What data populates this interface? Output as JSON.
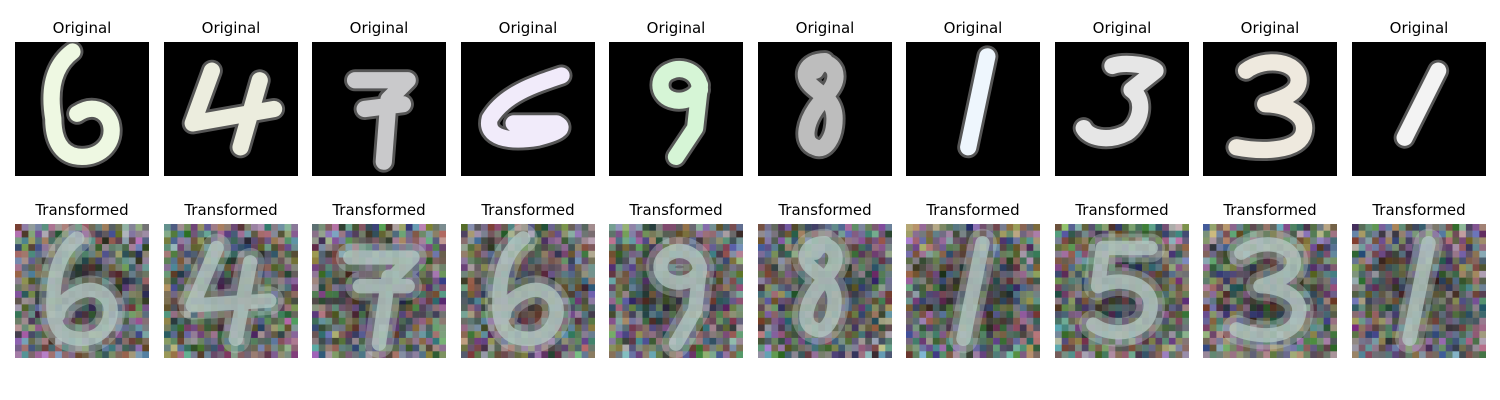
{
  "rows": {
    "original": {
      "title": "Original",
      "background": "#000000",
      "panels": [
        {
          "digit": "6",
          "color": "#eef8e2"
        },
        {
          "digit": "4",
          "color": "#ecedde"
        },
        {
          "digit": "7",
          "color": "#c9c9cb"
        },
        {
          "digit": "6",
          "color": "#f1ebfa"
        },
        {
          "digit": "9",
          "color": "#d6f5d6"
        },
        {
          "digit": "8",
          "color": "#bdbdbd"
        },
        {
          "digit": "1",
          "color": "#eef6fd"
        },
        {
          "digit": "3",
          "color": "#e6e6e6"
        },
        {
          "digit": "3",
          "color": "#eee9de"
        },
        {
          "digit": "1",
          "color": "#f3f3f3"
        }
      ]
    },
    "transformed": {
      "title": "Transformed",
      "panels": [
        {
          "digit": "6"
        },
        {
          "digit": "4"
        },
        {
          "digit": "7"
        },
        {
          "digit": "6"
        },
        {
          "digit": "9"
        },
        {
          "digit": "8"
        },
        {
          "digit": "1"
        },
        {
          "digit": "5"
        },
        {
          "digit": "3"
        },
        {
          "digit": "1"
        }
      ]
    }
  }
}
